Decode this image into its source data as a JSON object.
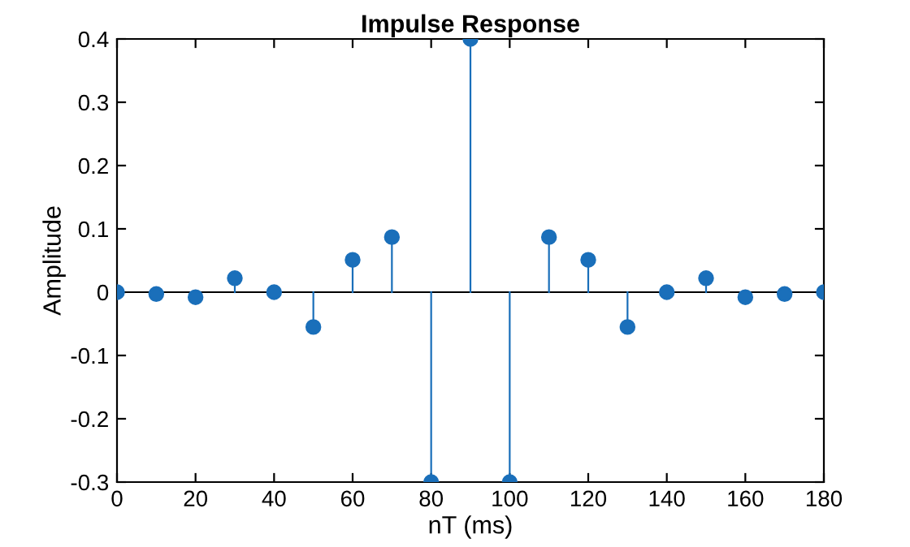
{
  "chart_data": {
    "type": "lollipop",
    "title": "Impulse Response",
    "xlabel": "nT (ms)",
    "ylabel": "Amplitude",
    "x": [
      0,
      10,
      20,
      30,
      40,
      50,
      60,
      70,
      80,
      90,
      100,
      110,
      120,
      130,
      140,
      150,
      160,
      170,
      180
    ],
    "values": [
      0,
      -0.003,
      -0.008,
      0.022,
      0,
      -0.055,
      0.051,
      0.087,
      -0.3,
      0.4,
      -0.3,
      0.087,
      0.051,
      -0.055,
      0,
      0.022,
      -0.008,
      -0.003,
      0
    ],
    "color": "#1a6fba",
    "marker": "circle",
    "grid": false,
    "legend": false,
    "xlim": [
      0,
      180
    ],
    "xticks": [
      0,
      20,
      40,
      60,
      80,
      100,
      120,
      140,
      160,
      180
    ],
    "ylim": [
      -0.3,
      0.4
    ],
    "yticks": [
      -0.3,
      -0.2,
      -0.1,
      0,
      0.1,
      0.2,
      0.3,
      0.4
    ],
    "ref_lines": [
      {
        "axis": "y",
        "value": 0,
        "color": "#000000"
      }
    ]
  }
}
